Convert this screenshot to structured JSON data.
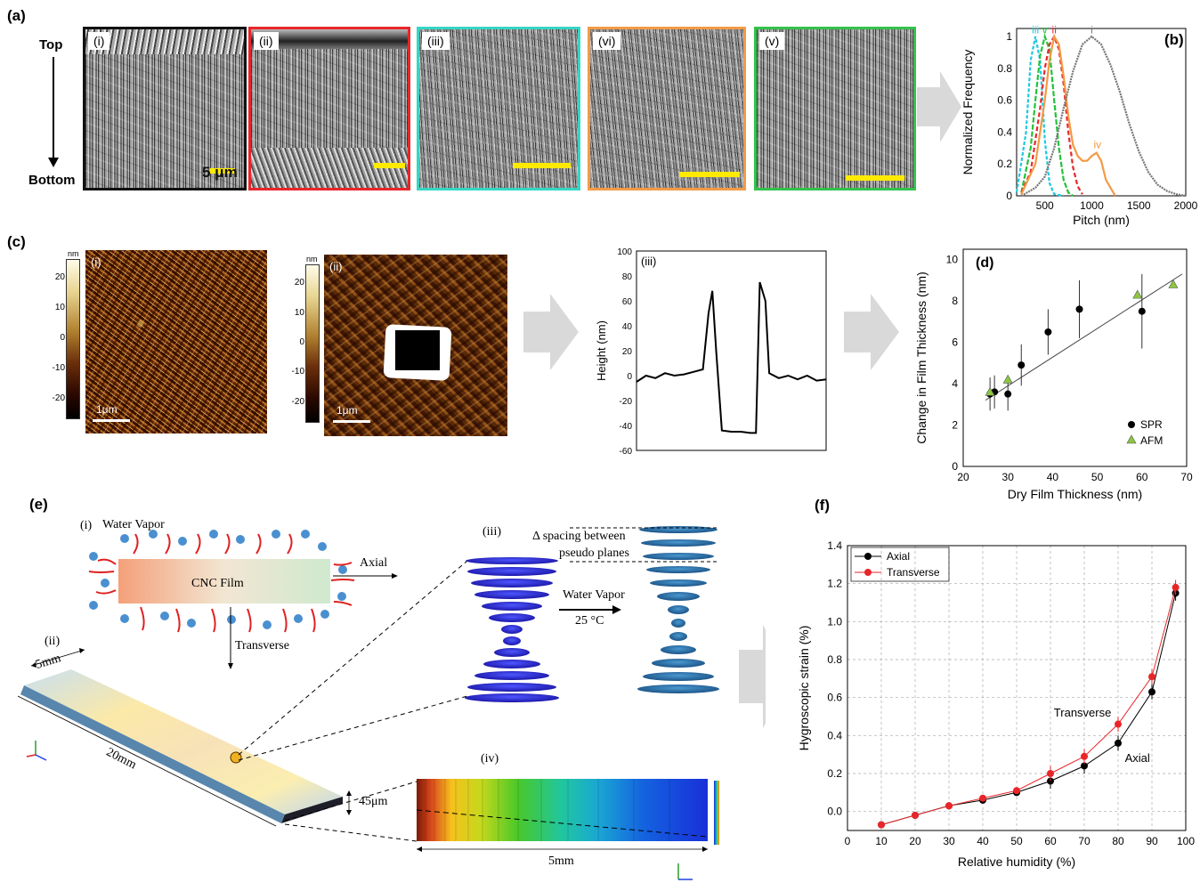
{
  "panel_a": {
    "letter": "(a)",
    "top": "Top",
    "bottom": "Bottom",
    "scale_label": "5 μm",
    "images": [
      {
        "label": "(i)",
        "color": "#111111"
      },
      {
        "label": "(ii)",
        "color": "#e8262a"
      },
      {
        "label": "(iii)",
        "color": "#35d6c4"
      },
      {
        "label": "(vi)",
        "color": "#f39a45"
      },
      {
        "label": "(v)",
        "color": "#33c24a"
      }
    ]
  },
  "panel_b": {
    "letter": "(b)",
    "chart_data": {
      "type": "line",
      "xlabel": "Pitch (nm)",
      "ylabel": "Normalized Frequency",
      "xlim": [
        200,
        2000
      ],
      "ylim": [
        0,
        1.05
      ],
      "xticks": [
        "500",
        "1000",
        "1500",
        "2000"
      ],
      "yticks": [
        "0",
        "0.2",
        "0.4",
        "0.6",
        "0.8",
        "1"
      ],
      "series": [
        {
          "name": "iii",
          "color": "#20c8e0",
          "x": [
            200,
            300,
            350,
            400,
            450,
            500,
            550,
            600,
            700
          ],
          "y": [
            0.02,
            0.4,
            0.85,
            1.0,
            0.85,
            0.35,
            0.08,
            0.01,
            0
          ]
        },
        {
          "name": "v",
          "color": "#22c23a",
          "x": [
            250,
            350,
            400,
            450,
            500,
            550,
            600,
            650,
            700,
            750,
            800
          ],
          "y": [
            0.02,
            0.3,
            0.6,
            0.88,
            1.0,
            0.92,
            0.6,
            0.3,
            0.1,
            0.02,
            0
          ]
        },
        {
          "name": "ii",
          "color": "#e8262a",
          "x": [
            250,
            350,
            450,
            500,
            550,
            600,
            650,
            700,
            750,
            800,
            850,
            900
          ],
          "y": [
            0.02,
            0.15,
            0.55,
            0.8,
            0.95,
            1.0,
            0.92,
            0.7,
            0.4,
            0.18,
            0.06,
            0.01
          ]
        },
        {
          "name": "iv",
          "color": "#f39a45",
          "x": [
            250,
            400,
            500,
            550,
            600,
            650,
            700,
            750,
            800,
            850,
            900,
            950,
            1000,
            1050,
            1100,
            1150,
            1250
          ],
          "y": [
            0.01,
            0.2,
            0.6,
            0.85,
            1.0,
            0.95,
            0.75,
            0.5,
            0.32,
            0.25,
            0.22,
            0.22,
            0.25,
            0.27,
            0.22,
            0.1,
            0
          ]
        },
        {
          "name": "i",
          "color": "#777777",
          "x": [
            250,
            400,
            500,
            600,
            700,
            800,
            900,
            1000,
            1100,
            1200,
            1300,
            1400,
            1500,
            1600,
            1700,
            1800,
            1900,
            2000
          ],
          "y": [
            0.0,
            0.05,
            0.12,
            0.3,
            0.55,
            0.78,
            0.95,
            1.0,
            0.95,
            0.82,
            0.65,
            0.45,
            0.28,
            0.15,
            0.07,
            0.03,
            0.01,
            0.0
          ]
        }
      ],
      "annotations": [
        "iii",
        "v",
        "ii",
        "i",
        "iv"
      ]
    }
  },
  "panel_c": {
    "letter": "(c)",
    "afm_i": {
      "label": "(i)",
      "unit": "nm",
      "ticks": [
        "20",
        "10",
        "0",
        "-10",
        "-20"
      ],
      "scale": "1μm"
    },
    "afm_ii": {
      "label": "(ii)",
      "unit": "nm",
      "ticks": [
        "20",
        "10",
        "0",
        "-10",
        "-20"
      ],
      "scale": "1μm"
    },
    "profile": {
      "label": "(iii)",
      "chart_data": {
        "type": "line",
        "ylabel": "Height (nm)",
        "ylim": [
          -60,
          100
        ],
        "yticks": [
          "100",
          "80",
          "60",
          "40",
          "20",
          "0",
          "-20",
          "-40",
          "-60"
        ],
        "x": [
          0,
          5,
          10,
          15,
          20,
          25,
          30,
          35,
          38,
          40,
          42,
          45,
          50,
          55,
          60,
          63,
          65,
          68,
          70,
          75,
          80,
          85,
          90,
          95,
          100
        ],
        "y": [
          -5,
          0,
          -2,
          2,
          0,
          1,
          3,
          5,
          50,
          68,
          20,
          -44,
          -45,
          -45,
          -46,
          -46,
          75,
          60,
          2,
          -2,
          0,
          -3,
          0,
          -4,
          -3
        ]
      }
    },
    "panel_d": {
      "letter": "(d)",
      "chart_data": {
        "type": "scatter",
        "xlabel": "Dry Film Thickness (nm)",
        "ylabel": "Change in Film Thickness (nm)",
        "xlim": [
          20,
          70
        ],
        "ylim": [
          0,
          10.5
        ],
        "xticks": [
          "20",
          "30",
          "40",
          "50",
          "60",
          "70"
        ],
        "yticks": [
          "0",
          "2",
          "4",
          "6",
          "8",
          "10"
        ],
        "series": [
          {
            "name": "SPR",
            "color": "#000000",
            "x": [
              26,
              27,
              30,
              33,
              39,
              46,
              60
            ],
            "y": [
              3.5,
              3.6,
              3.5,
              4.9,
              6.5,
              7.6,
              7.5
            ]
          },
          {
            "name": "AFM",
            "color": "#8dc63f",
            "x": [
              26,
              30,
              59,
              67
            ],
            "y": [
              3.6,
              4.2,
              8.3,
              8.8
            ]
          }
        ],
        "fit": {
          "x": [
            25,
            69
          ],
          "y": [
            3.2,
            9.3
          ]
        }
      }
    }
  },
  "panel_e": {
    "letter": "(e)",
    "i_label": "(i)",
    "water_vapor": "Water Vapor",
    "film": "CNC Film",
    "axial": "Axial",
    "transverse": "Transverse",
    "ii_label": "(ii)",
    "dim_5mm": "5mm",
    "dim_20mm": "20mm",
    "dim_45um": "45μm",
    "iii_label": "(iii)",
    "spacing": "Δ spacing between",
    "spacing2": "pseudo planes",
    "water_vapor2": "Water Vapor",
    "temp": "25 °C",
    "iv_label": "(iv)",
    "dim_bottom": "5mm"
  },
  "panel_f": {
    "letter": "(f)",
    "chart_data": {
      "type": "line",
      "xlabel": "Relative humidity (%)",
      "ylabel": "Hygroscopic strain (%)",
      "xlim": [
        0,
        100
      ],
      "ylim": [
        -0.1,
        1.4
      ],
      "xticks": [
        "0",
        "10",
        "20",
        "30",
        "40",
        "50",
        "60",
        "70",
        "80",
        "90",
        "100"
      ],
      "yticks": [
        "0.0",
        "0.2",
        "0.4",
        "0.6",
        "0.8",
        "1.0",
        "1.2",
        "1.4"
      ],
      "series": [
        {
          "name": "Axial",
          "color": "#000000",
          "x": [
            10,
            20,
            30,
            40,
            50,
            60,
            70,
            80,
            90,
            97
          ],
          "y": [
            -0.07,
            -0.02,
            0.03,
            0.06,
            0.1,
            0.16,
            0.24,
            0.36,
            0.63,
            1.15
          ]
        },
        {
          "name": "Transverse",
          "color": "#e8262a",
          "x": [
            10,
            20,
            30,
            40,
            50,
            60,
            70,
            80,
            90,
            97
          ],
          "y": [
            -0.07,
            -0.02,
            0.03,
            0.07,
            0.11,
            0.2,
            0.29,
            0.46,
            0.71,
            1.18
          ]
        }
      ],
      "annotations": [
        "Transverse",
        "Axial"
      ]
    }
  }
}
